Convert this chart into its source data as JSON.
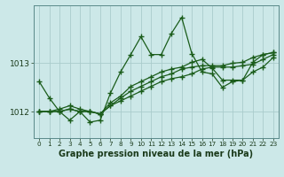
{
  "background_color": "#cce8e8",
  "plot_bg_color": "#cce8e8",
  "grid_color": "#aacccc",
  "line_color": "#1a5c1a",
  "xlabel": "Graphe pression niveau de la mer (hPa)",
  "xlabel_fontsize": 7.0,
  "ylabel_ticks": [
    1012,
    1013
  ],
  "xlim": [
    -0.5,
    23.5
  ],
  "ylim": [
    1011.45,
    1014.2
  ],
  "ytick_fontsize": 6.5,
  "xtick_fontsize": 5.2,
  "series": [
    [
      1012.62,
      1012.28,
      1012.0,
      1011.82,
      1012.0,
      1011.78,
      1011.82,
      1012.38,
      1012.82,
      1013.18,
      1013.55,
      1013.18,
      1013.18,
      1013.62,
      1013.95,
      1013.2,
      1012.82,
      1012.78,
      1012.5,
      1012.62,
      1012.65,
      1013.02,
      1013.18,
      1013.22
    ],
    [
      1012.0,
      1012.0,
      1012.0,
      1012.05,
      1012.0,
      1012.0,
      1011.95,
      1012.12,
      1012.22,
      1012.32,
      1012.42,
      1012.52,
      1012.62,
      1012.68,
      1012.72,
      1012.78,
      1012.88,
      1012.92,
      1012.92,
      1012.92,
      1012.95,
      1012.98,
      1013.08,
      1013.18
    ],
    [
      1012.0,
      1012.0,
      1012.0,
      1012.05,
      1012.0,
      1012.0,
      1011.95,
      1012.12,
      1012.28,
      1012.42,
      1012.52,
      1012.62,
      1012.72,
      1012.78,
      1012.88,
      1012.92,
      1012.95,
      1012.95,
      1012.95,
      1013.0,
      1013.02,
      1013.12,
      1013.18,
      1013.22
    ],
    [
      1012.0,
      1012.0,
      1012.05,
      1012.12,
      1012.05,
      1012.0,
      1011.95,
      1012.18,
      1012.32,
      1012.52,
      1012.62,
      1012.72,
      1012.82,
      1012.88,
      1012.92,
      1013.02,
      1013.08,
      1012.9,
      1012.65,
      1012.65,
      1012.65,
      1012.82,
      1012.92,
      1013.12
    ]
  ],
  "marker": "+",
  "markersize": 4,
  "linewidth": 0.9,
  "markeredgewidth": 1.0
}
